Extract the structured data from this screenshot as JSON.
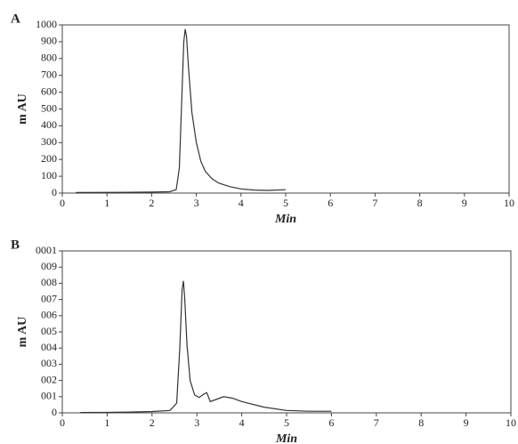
{
  "chart_data": [
    {
      "type": "line",
      "panel_label": "A",
      "xlabel": "Min",
      "ylabel": "m AU",
      "xlim": [
        0,
        10
      ],
      "ylim": [
        0,
        1000
      ],
      "xticks": [
        0,
        1,
        2,
        3,
        4,
        5,
        6,
        7,
        8,
        9,
        10
      ],
      "yticks": [
        0,
        100,
        200,
        300,
        400,
        500,
        600,
        700,
        800,
        900,
        1000
      ],
      "series": [
        {
          "color": "#333333",
          "x": [
            0.3,
            1.0,
            1.5,
            2.0,
            2.4,
            2.55,
            2.62,
            2.68,
            2.72,
            2.75,
            2.78,
            2.82,
            2.9,
            3.0,
            3.1,
            3.2,
            3.35,
            3.5,
            3.75,
            4.0,
            4.3,
            4.6,
            5.0
          ],
          "values": [
            3,
            4,
            5,
            6,
            8,
            20,
            150,
            600,
            900,
            975,
            930,
            760,
            480,
            300,
            190,
            130,
            85,
            60,
            38,
            25,
            18,
            16,
            20
          ]
        }
      ]
    },
    {
      "type": "line",
      "panel_label": "B",
      "xlabel": "Min",
      "ylabel": "m AU",
      "xlim": [
        0,
        10
      ],
      "ylim": [
        0,
        1000
      ],
      "xticks": [
        0,
        1,
        2,
        3,
        4,
        5,
        6,
        7,
        8,
        9,
        10
      ],
      "yticks": [
        0,
        {
          "value": 100,
          "label": "001"
        },
        {
          "value": 200,
          "label": "002"
        },
        {
          "value": 300,
          "label": "003"
        },
        {
          "value": 400,
          "label": "004"
        },
        {
          "value": 500,
          "label": "005"
        },
        {
          "value": 600,
          "label": "006"
        },
        {
          "value": 700,
          "label": "007"
        },
        {
          "value": 800,
          "label": "008"
        },
        {
          "value": 900,
          "label": "009"
        },
        {
          "value": 1000,
          "label": "0001"
        }
      ],
      "series": [
        {
          "color": "#333333",
          "x": [
            0.4,
            1.0,
            1.5,
            2.0,
            2.4,
            2.55,
            2.62,
            2.67,
            2.7,
            2.73,
            2.78,
            2.85,
            2.95,
            3.05,
            3.15,
            3.22,
            3.3,
            3.45,
            3.6,
            3.8,
            4.0,
            4.5,
            5.0,
            5.5,
            6.0
          ],
          "values": [
            2,
            3,
            5,
            8,
            15,
            60,
            400,
            760,
            815,
            700,
            420,
            200,
            110,
            95,
            115,
            125,
            70,
            85,
            100,
            90,
            70,
            35,
            15,
            10,
            10
          ]
        }
      ]
    }
  ]
}
